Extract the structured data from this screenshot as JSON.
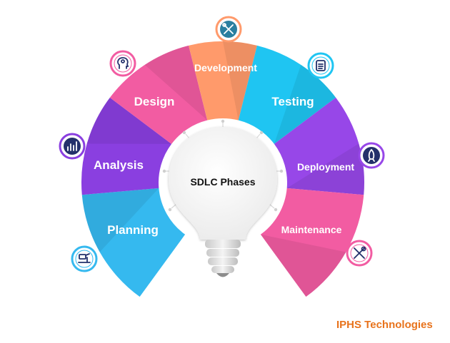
{
  "center": {
    "title": "SDLC Phases"
  },
  "phases": [
    {
      "label": "Planning",
      "color": "#35b9ef",
      "icon": "planning-icon"
    },
    {
      "label": "Analysis",
      "color": "#8a3fe0",
      "icon": "analysis-chart-icon"
    },
    {
      "label": "Design",
      "color": "#f25ca2",
      "icon": "design-brain-icon"
    },
    {
      "label": "Development",
      "color": "#ff9a6b",
      "icon": "development-tools-icon"
    },
    {
      "label": "Testing",
      "color": "#1fc5f2",
      "icon": "testing-checklist-icon"
    },
    {
      "label": "Deployment",
      "color": "#9747e8",
      "icon": "deployment-rocket-icon"
    },
    {
      "label": "Maintenance",
      "color": "#f25ca2",
      "icon": "maintenance-wrench-icon"
    }
  ],
  "brand": {
    "text": "IPHS Technologies",
    "color": "#e8731c"
  }
}
